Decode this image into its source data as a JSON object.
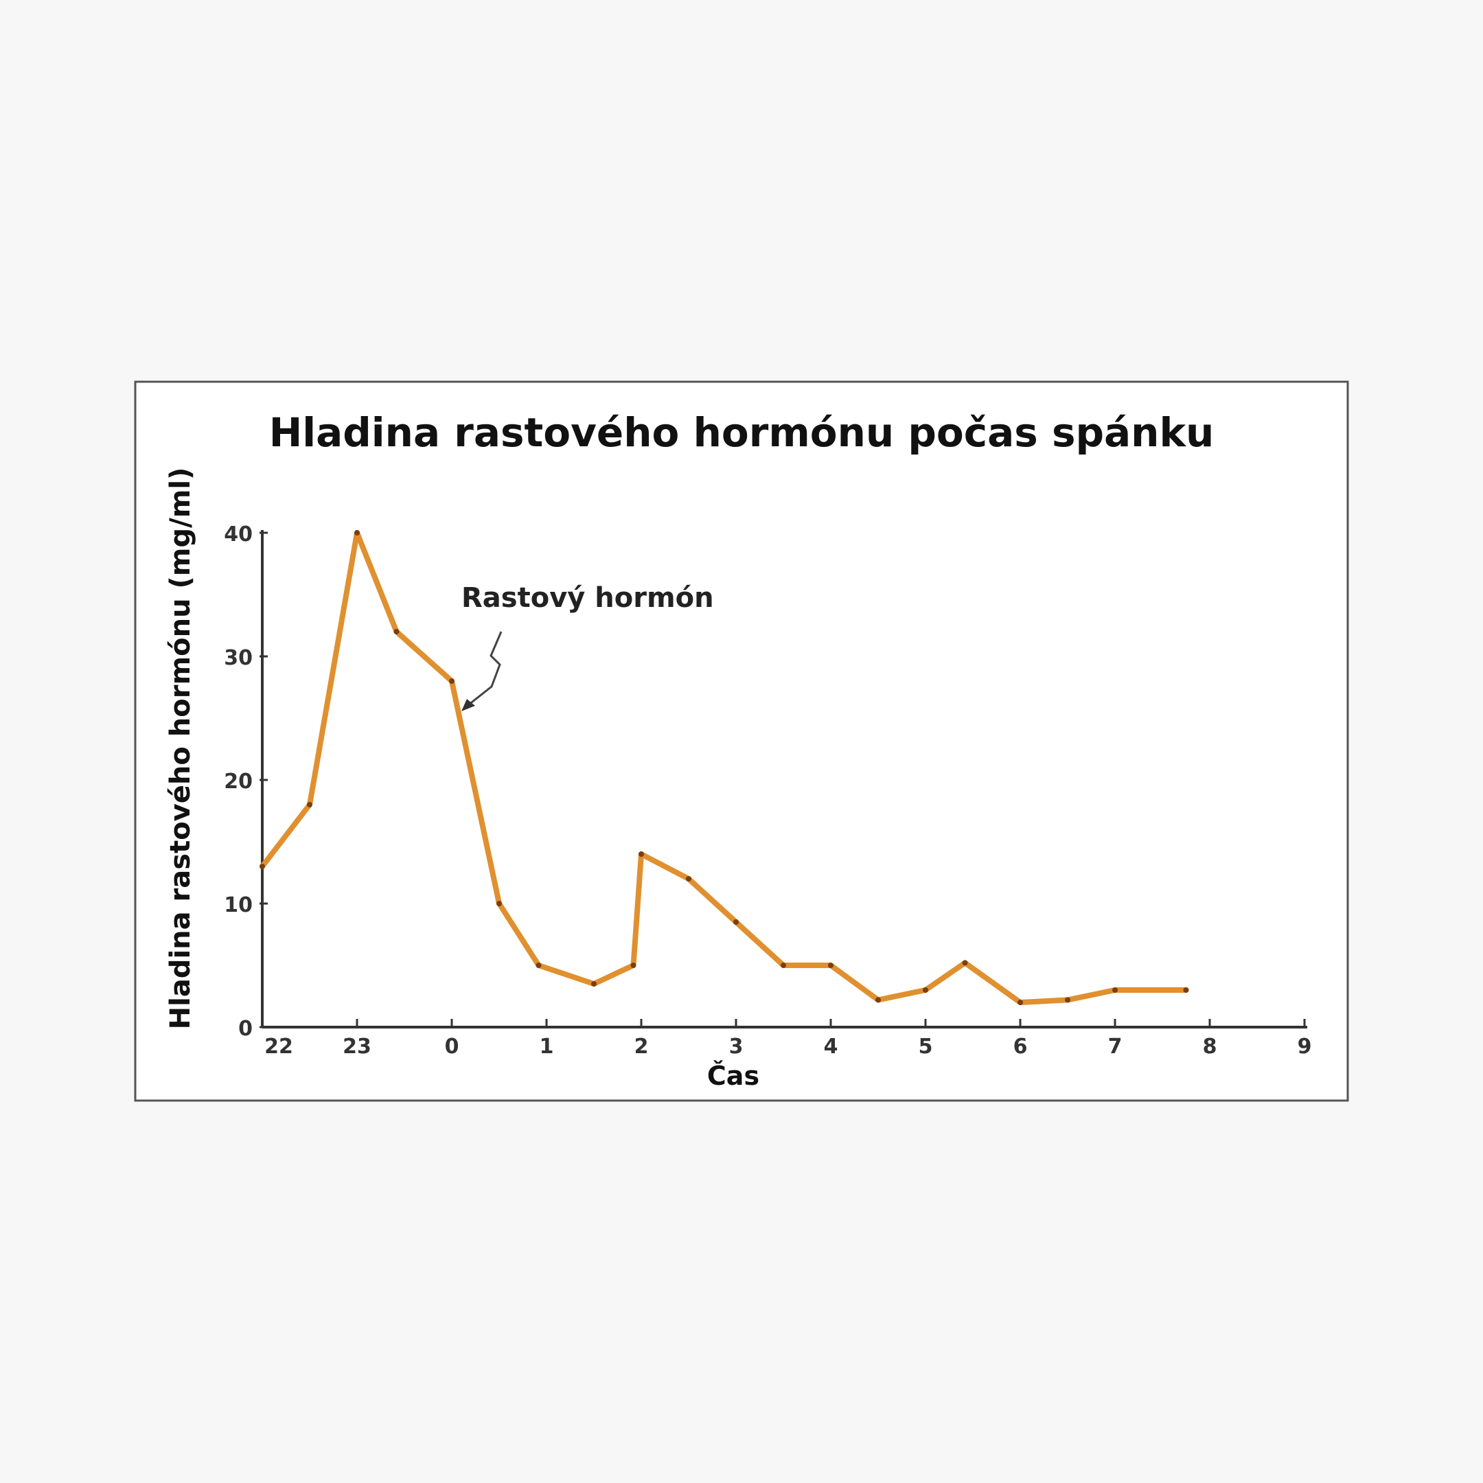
{
  "chart_data": {
    "type": "line",
    "title": "Hladina rastového hormónu počas spánku",
    "xlabel": "Čas",
    "ylabel": "Hladina rastového hormónu (mg/ml)",
    "annotation": "Rastový hormón",
    "x_tick_labels": [
      "22",
      "23",
      "0",
      "1",
      "2",
      "3",
      "4",
      "5",
      "6",
      "7",
      "8",
      "9"
    ],
    "y_tick_labels": [
      "0",
      "10",
      "20",
      "30",
      "40"
    ],
    "ylim": [
      0,
      40
    ],
    "grid": false,
    "series": [
      {
        "color": "#e0902f",
        "x": [
          "22:00",
          "22:30",
          "23:00",
          "23:25",
          "0:00",
          "0:30",
          "0:55",
          "1:30",
          "1:55",
          "2:00",
          "2:30",
          "3:00",
          "3:30",
          "4:00",
          "4:30",
          "5:00",
          "5:25",
          "6:00",
          "6:30",
          "7:00",
          "7:45"
        ],
        "values": [
          13,
          18,
          40,
          32,
          28,
          10,
          5,
          3.5,
          5,
          14,
          12,
          8.5,
          5,
          5,
          2.2,
          3,
          5.2,
          2,
          2.2,
          3,
          3
        ]
      }
    ]
  }
}
